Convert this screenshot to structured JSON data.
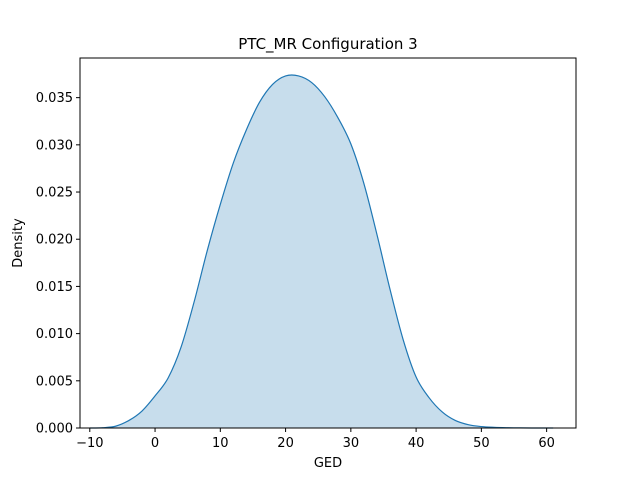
{
  "chart_data": {
    "type": "area",
    "title": "PTC_MR Configuration 3",
    "xlabel": "GED",
    "ylabel": "Density",
    "xlim": [
      -11.5,
      64.5
    ],
    "ylim": [
      0,
      0.0392
    ],
    "xticks": [
      -10,
      0,
      10,
      20,
      30,
      40,
      50,
      60
    ],
    "xtick_labels": [
      "−10",
      "0",
      "10",
      "20",
      "30",
      "40",
      "50",
      "60"
    ],
    "yticks": [
      0.0,
      0.005,
      0.01,
      0.015,
      0.02,
      0.025,
      0.03,
      0.035
    ],
    "ytick_labels": [
      "0.000",
      "0.005",
      "0.010",
      "0.015",
      "0.020",
      "0.025",
      "0.030",
      "0.035"
    ],
    "grid": false,
    "legend": null,
    "series": [
      {
        "x": [
          -10,
          -8,
          -6,
          -4,
          -2,
          0,
          2,
          4,
          6,
          8,
          10,
          12,
          14,
          16,
          18,
          20,
          22,
          24,
          26,
          28,
          30,
          32,
          34,
          36,
          38,
          40,
          42,
          44,
          46,
          48,
          50,
          52,
          54,
          56,
          58,
          60,
          61
        ],
        "y": [
          0.0,
          3e-05,
          0.0002,
          0.0008,
          0.0018,
          0.0034,
          0.0053,
          0.0086,
          0.0134,
          0.0188,
          0.0237,
          0.0281,
          0.0316,
          0.0345,
          0.0364,
          0.0373,
          0.0373,
          0.0366,
          0.0351,
          0.0329,
          0.0301,
          0.0259,
          0.0205,
          0.0147,
          0.0094,
          0.0054,
          0.0032,
          0.0017,
          0.0008,
          0.00035,
          0.00015,
          7e-05,
          3e-05,
          1e-05,
          0.0,
          0.0,
          0.0
        ]
      }
    ],
    "colors": {
      "line": "#1f77b4",
      "fill": "#1f77b4",
      "fill_opacity": 0.25,
      "axes": "#000000",
      "background": "#ffffff"
    }
  }
}
